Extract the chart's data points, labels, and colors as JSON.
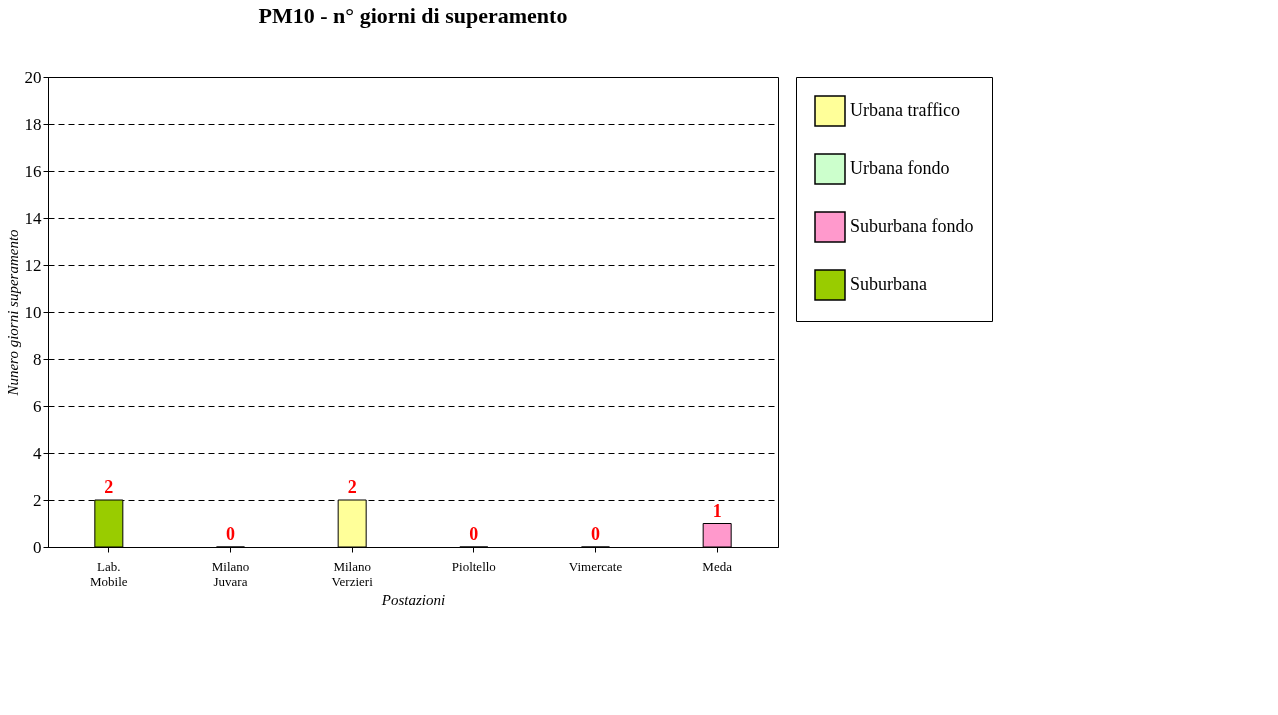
{
  "chart_data": {
    "type": "bar",
    "title": "PM10 - n° giorni di superamento",
    "xlabel": "Postazioni",
    "ylabel": "Nunero giorni superamento",
    "categories": [
      "Lab. Mobile",
      "Milano Juvara",
      "Milano Verzieri",
      "Pioltello",
      "Vimercate",
      "Meda"
    ],
    "series": [
      {
        "name": "Urbana traffico",
        "color": "#ffff99",
        "values": [
          null,
          null,
          2,
          null,
          null,
          null
        ]
      },
      {
        "name": "Urbana fondo",
        "color": "#ccffcc",
        "values": [
          null,
          0,
          null,
          0,
          0,
          null
        ]
      },
      {
        "name": "Suburbana fondo",
        "color": "#ff99cc",
        "values": [
          null,
          null,
          null,
          null,
          null,
          1
        ]
      },
      {
        "name": "Suburbana",
        "color": "#99cc00",
        "values": [
          2,
          null,
          null,
          null,
          null,
          null
        ]
      }
    ],
    "ylim": [
      0,
      20
    ],
    "yticks": [
      0,
      2,
      4,
      6,
      8,
      10,
      12,
      14,
      16,
      18,
      20
    ],
    "grid": "y",
    "legend": "right",
    "data_labels": true
  }
}
